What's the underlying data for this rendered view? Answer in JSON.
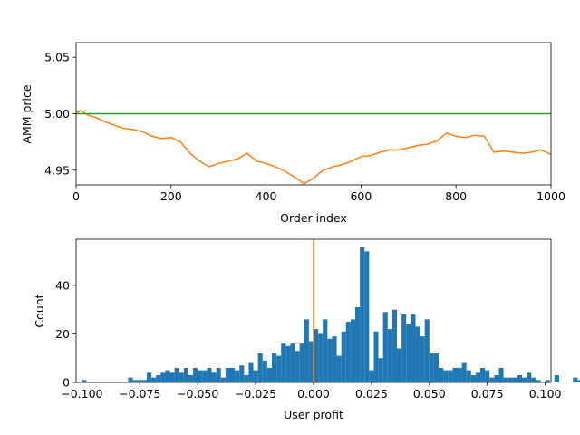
{
  "chart_data": [
    {
      "type": "line",
      "xlabel": "Order index",
      "ylabel": "AMM price",
      "xlim": [
        0,
        1000
      ],
      "ylim": [
        4.937,
        5.063
      ],
      "xticks": [
        "0",
        "200",
        "400",
        "600",
        "800",
        "1000"
      ],
      "yticks": [
        "4.95",
        "5.00",
        "5.05"
      ],
      "grid": false,
      "series": [
        {
          "color": "#ff7f0e",
          "x": [
            0,
            10,
            20,
            30,
            40,
            60,
            80,
            100,
            120,
            140,
            160,
            180,
            200,
            220,
            240,
            260,
            280,
            300,
            320,
            340,
            360,
            380,
            400,
            420,
            440,
            460,
            480,
            500,
            520,
            540,
            560,
            580,
            600,
            620,
            640,
            660,
            680,
            700,
            720,
            740,
            760,
            780,
            800,
            820,
            840,
            860,
            870,
            880,
            900,
            920,
            940,
            960,
            980,
            1000
          ],
          "y": [
            5.0,
            5.003,
            5.0,
            4.998,
            4.997,
            4.993,
            4.99,
            4.987,
            4.986,
            4.984,
            4.98,
            4.978,
            4.979,
            4.975,
            4.965,
            4.958,
            4.953,
            4.956,
            4.958,
            4.96,
            4.965,
            4.958,
            4.956,
            4.953,
            4.949,
            4.944,
            4.938,
            4.943,
            4.95,
            4.953,
            4.955,
            4.958,
            4.962,
            4.963,
            4.966,
            4.968,
            4.968,
            4.97,
            4.972,
            4.973,
            4.976,
            4.983,
            4.98,
            4.979,
            4.981,
            4.98,
            4.973,
            4.966,
            4.967,
            4.966,
            4.965,
            4.966,
            4.968,
            4.964
          ]
        },
        {
          "color": "#2ca02c",
          "x": [
            0,
            1000
          ],
          "y": [
            5.0,
            5.0
          ]
        }
      ]
    },
    {
      "type": "bar",
      "xlabel": "User profit",
      "ylabel": "Count",
      "xlim": [
        -0.1025,
        0.1025
      ],
      "ylim": [
        0,
        59
      ],
      "xticks": [
        "−0.100",
        "−0.075",
        "−0.050",
        "−0.025",
        "0.000",
        "0.025",
        "0.050",
        "0.075",
        "0.100"
      ],
      "yticks": [
        "0",
        "20",
        "40"
      ],
      "bar_color": "#1f77b4",
      "vline": {
        "x": 0.0,
        "color": "#ff7f0e"
      },
      "bin_start": -0.1,
      "bin_width": 0.002,
      "counts": [
        1,
        0,
        0,
        0,
        0,
        0,
        0,
        0,
        0,
        0,
        2,
        1,
        1,
        1,
        4,
        2,
        3,
        4,
        5,
        4,
        6,
        4,
        6,
        3,
        6,
        5,
        5,
        6,
        4,
        6,
        2,
        6,
        6,
        5,
        7,
        3,
        8,
        5,
        12,
        9,
        6,
        12,
        11,
        16,
        15,
        16,
        13,
        16,
        26,
        17,
        22,
        20,
        26,
        18,
        19,
        11,
        21,
        25,
        26,
        31,
        56,
        54,
        5,
        21,
        10,
        29,
        22,
        30,
        14,
        28,
        24,
        28,
        23,
        19,
        26,
        12,
        12,
        6,
        5,
        5,
        6,
        6,
        8,
        5,
        3,
        4,
        6,
        5,
        2,
        3,
        6,
        2,
        2,
        2,
        3,
        2,
        4,
        2,
        1,
        0,
        1,
        0,
        3,
        0,
        0,
        0,
        2,
        1,
        1,
        0,
        0,
        1,
        0,
        0
      ]
    }
  ]
}
